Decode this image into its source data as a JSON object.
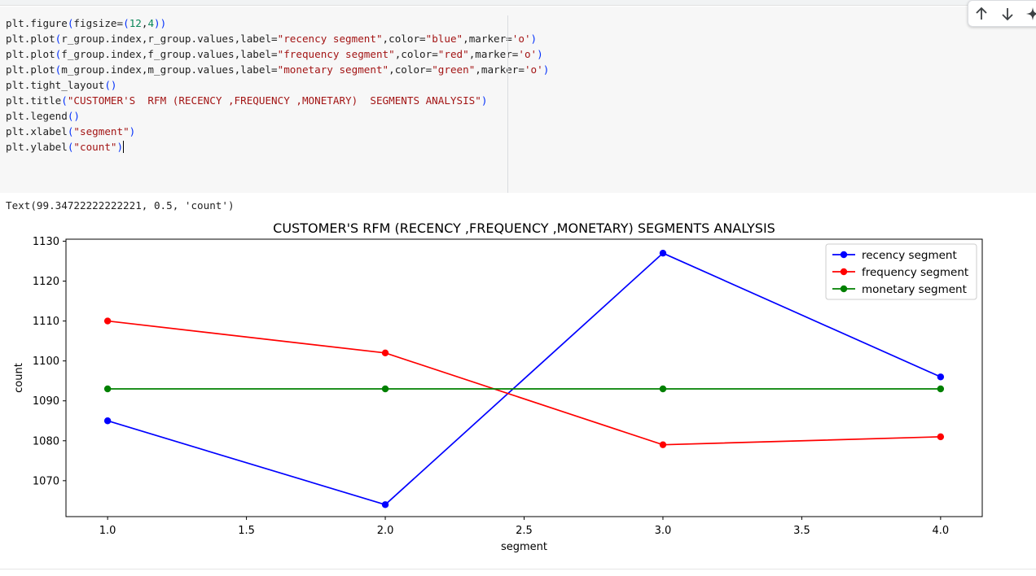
{
  "code_cell": {
    "lines": [
      [
        {
          "t": "plt.figure"
        },
        {
          "t": "(",
          "c": "p"
        },
        {
          "t": "figsize="
        },
        {
          "t": "(",
          "c": "p"
        },
        {
          "t": "12",
          "c": "n"
        },
        {
          "t": ","
        },
        {
          "t": "4",
          "c": "n"
        },
        {
          "t": "))",
          "c": "p"
        }
      ],
      [
        {
          "t": "plt.plot"
        },
        {
          "t": "(",
          "c": "p"
        },
        {
          "t": "r_group.index,r_group.values,label="
        },
        {
          "t": "\"recency segment\"",
          "c": "s"
        },
        {
          "t": ",color="
        },
        {
          "t": "\"blue\"",
          "c": "s"
        },
        {
          "t": ",marker="
        },
        {
          "t": "'o'",
          "c": "s"
        },
        {
          "t": ")",
          "c": "p"
        }
      ],
      [
        {
          "t": "plt.plot"
        },
        {
          "t": "(",
          "c": "p"
        },
        {
          "t": "f_group.index,f_group.values,label="
        },
        {
          "t": "\"frequency segment\"",
          "c": "s"
        },
        {
          "t": ",color="
        },
        {
          "t": "\"red\"",
          "c": "s"
        },
        {
          "t": ",marker="
        },
        {
          "t": "'o'",
          "c": "s"
        },
        {
          "t": ")",
          "c": "p"
        }
      ],
      [
        {
          "t": "plt.plot"
        },
        {
          "t": "(",
          "c": "p"
        },
        {
          "t": "m_group.index,m_group.values,label="
        },
        {
          "t": "\"monetary segment\"",
          "c": "s"
        },
        {
          "t": ",color="
        },
        {
          "t": "\"green\"",
          "c": "s"
        },
        {
          "t": ",marker="
        },
        {
          "t": "'o'",
          "c": "s"
        },
        {
          "t": ")",
          "c": "p"
        }
      ],
      [
        {
          "t": "plt.tight_layout"
        },
        {
          "t": "()",
          "c": "p"
        }
      ],
      [
        {
          "t": "plt.title"
        },
        {
          "t": "(",
          "c": "p"
        },
        {
          "t": "\"CUSTOMER'S  RFM (RECENCY ,FREQUENCY ,MONETARY)  SEGMENTS ANALYSIS\"",
          "c": "s"
        },
        {
          "t": ")",
          "c": "p"
        }
      ],
      [
        {
          "t": "plt.legend"
        },
        {
          "t": "()",
          "c": "p"
        }
      ],
      [
        {
          "t": "plt.xlabel"
        },
        {
          "t": "(",
          "c": "p"
        },
        {
          "t": "\"segment\"",
          "c": "s"
        },
        {
          "t": ")",
          "c": "p"
        }
      ],
      [
        {
          "t": "plt.ylabel"
        },
        {
          "t": "(",
          "c": "p"
        },
        {
          "t": "\"count\"",
          "c": "s"
        },
        {
          "t": ")",
          "c": "p"
        }
      ]
    ]
  },
  "toolbar": {
    "move_up_icon": "arrow-up-icon",
    "move_down_icon": "arrow-down-icon",
    "ai_icon": "sparkle-icon"
  },
  "output": {
    "text": "Text(99.34722222222221, 0.5, 'count')"
  },
  "chart_data": {
    "type": "line",
    "title": "CUSTOMER'S  RFM (RECENCY ,FREQUENCY ,MONETARY)  SEGMENTS ANALYSIS",
    "xlabel": "segment",
    "ylabel": "count",
    "x": [
      1.0,
      2.0,
      3.0,
      4.0
    ],
    "xlim": [
      0.85,
      4.15
    ],
    "ylim": [
      1061,
      1130.5
    ],
    "xticks": [
      1.0,
      1.5,
      2.0,
      2.5,
      3.0,
      3.5,
      4.0
    ],
    "xtick_labels": [
      "1.0",
      "1.5",
      "2.0",
      "2.5",
      "3.0",
      "3.5",
      "4.0"
    ],
    "yticks": [
      1070,
      1080,
      1090,
      1100,
      1110,
      1120,
      1130
    ],
    "ytick_labels": [
      "1070",
      "1080",
      "1090",
      "1100",
      "1110",
      "1120",
      "1130"
    ],
    "grid": false,
    "legend_position": "upper right",
    "series": [
      {
        "name": "recency segment",
        "color": "#0000ff",
        "marker": "o",
        "values": [
          1085,
          1064,
          1127,
          1096
        ]
      },
      {
        "name": "frequency segment",
        "color": "#ff0000",
        "marker": "o",
        "values": [
          1110,
          1102,
          1079,
          1081
        ]
      },
      {
        "name": "monetary segment",
        "color": "#008000",
        "marker": "o",
        "values": [
          1093,
          1093,
          1093,
          1093
        ]
      }
    ]
  }
}
